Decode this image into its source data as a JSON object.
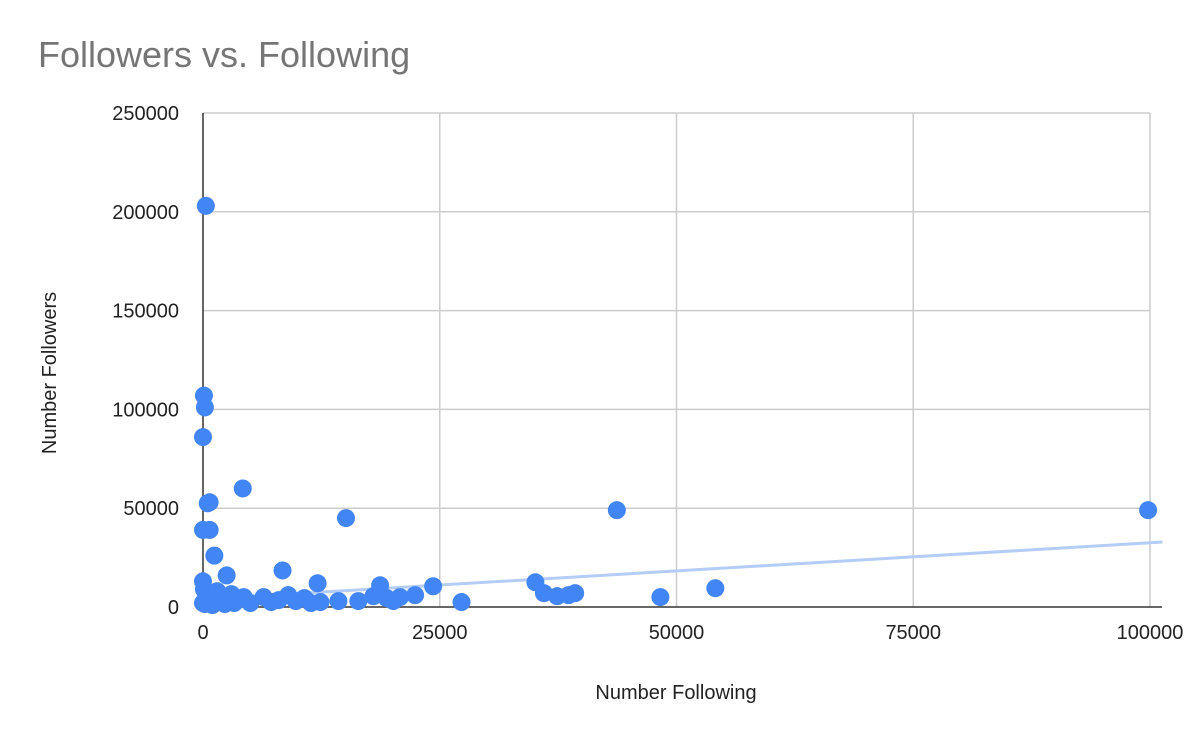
{
  "chart_data": {
    "type": "scatter",
    "title": "Followers vs. Following",
    "xlabel": "Number Following",
    "ylabel": "Number Followers",
    "xlim": [
      0,
      100000
    ],
    "ylim": [
      0,
      250000
    ],
    "x_ticks": [
      0,
      25000,
      50000,
      75000,
      100000
    ],
    "y_ticks": [
      0,
      50000,
      100000,
      150000,
      200000,
      250000
    ],
    "grid": true,
    "point_color": "#4285f4",
    "trendline": {
      "color": "#b3cdf6",
      "from": [
        0,
        4000
      ],
      "to": [
        100000,
        32500
      ]
    },
    "points": [
      [
        300,
        203000
      ],
      [
        100,
        107000
      ],
      [
        200,
        101000
      ],
      [
        0,
        86000
      ],
      [
        700,
        53000
      ],
      [
        500,
        52500
      ],
      [
        4200,
        60000
      ],
      [
        15100,
        45000
      ],
      [
        43700,
        49000
      ],
      [
        99800,
        49000
      ],
      [
        0,
        39000
      ],
      [
        700,
        39000
      ],
      [
        1200,
        26000
      ],
      [
        2500,
        16000
      ],
      [
        8400,
        18500
      ],
      [
        12100,
        12000
      ],
      [
        18700,
        11000
      ],
      [
        24300,
        10500
      ],
      [
        35100,
        12500
      ],
      [
        54100,
        9500
      ],
      [
        0,
        13000
      ],
      [
        100,
        9000
      ],
      [
        300,
        7000
      ],
      [
        600,
        5000
      ],
      [
        900,
        3000
      ],
      [
        1500,
        8000
      ],
      [
        2000,
        5000
      ],
      [
        3000,
        6500
      ],
      [
        3600,
        4000
      ],
      [
        4300,
        5000
      ],
      [
        5000,
        2000
      ],
      [
        6400,
        5000
      ],
      [
        7200,
        2500
      ],
      [
        8000,
        3500
      ],
      [
        9000,
        6000
      ],
      [
        9800,
        3000
      ],
      [
        10700,
        4500
      ],
      [
        11400,
        2000
      ],
      [
        12400,
        2500
      ],
      [
        14300,
        3000
      ],
      [
        16400,
        3000
      ],
      [
        18000,
        5500
      ],
      [
        19400,
        4500
      ],
      [
        20100,
        3000
      ],
      [
        20800,
        5000
      ],
      [
        22400,
        6000
      ],
      [
        27300,
        2500
      ],
      [
        36000,
        7000
      ],
      [
        37400,
        5500
      ],
      [
        38600,
        6000
      ],
      [
        39300,
        7000
      ],
      [
        48300,
        5000
      ],
      [
        0,
        2000
      ],
      [
        200,
        1500
      ],
      [
        400,
        2500
      ],
      [
        1000,
        1000
      ],
      [
        1800,
        2500
      ],
      [
        2300,
        1500
      ],
      [
        2700,
        3000
      ],
      [
        3300,
        2000
      ]
    ]
  }
}
